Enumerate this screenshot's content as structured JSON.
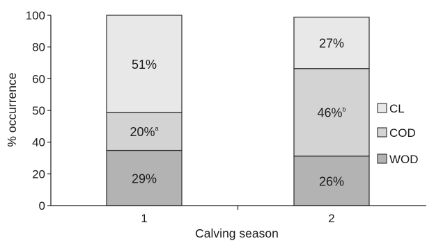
{
  "chart_data": {
    "type": "bar",
    "stacked": true,
    "title": "",
    "xlabel": "Calving season",
    "ylabel": "% occurrence",
    "categories": [
      "1",
      "2"
    ],
    "y_ticks": [
      "0",
      "20",
      "40",
      "50",
      "60",
      "80",
      "100"
    ],
    "ylim": [
      0,
      100
    ],
    "grid": false,
    "legend_position": "right",
    "series": [
      {
        "name": "WOD",
        "color": "#b3b3b3",
        "values": [
          29,
          26
        ],
        "labels": [
          "29%",
          "26%"
        ],
        "superscripts": [
          "",
          ""
        ]
      },
      {
        "name": "COD",
        "color": "#d3d3d3",
        "values": [
          20,
          46
        ],
        "labels": [
          "20%",
          "46%"
        ],
        "superscripts": [
          "a",
          "b"
        ]
      },
      {
        "name": "CL",
        "color": "#e8e8e8",
        "values": [
          51,
          27
        ],
        "labels": [
          "51%",
          "27%"
        ],
        "superscripts": [
          "",
          ""
        ]
      }
    ],
    "legend_order": [
      "CL",
      "COD",
      "WOD"
    ]
  }
}
